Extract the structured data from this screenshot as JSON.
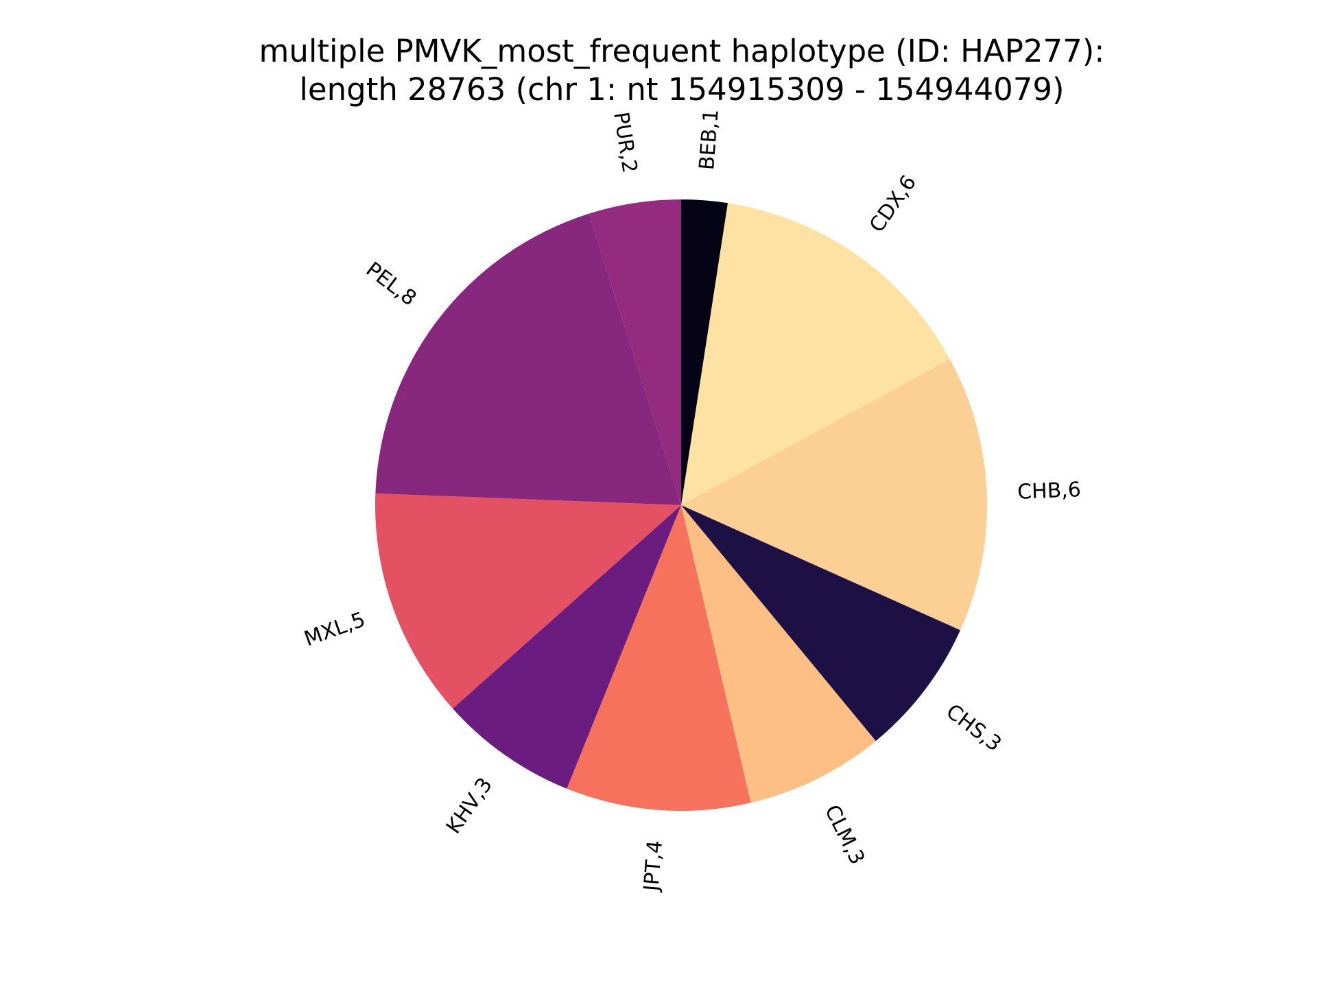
{
  "chart_data": {
    "type": "pie",
    "title": "multiple PMVK_most_frequent haplotype (ID: HAP277):",
    "subtitle": "length 28763 (chr 1: nt 154915309 - 154944079)",
    "start_angle_deg": 90,
    "direction": "clockwise",
    "slices": [
      {
        "label": "BEB,1",
        "value": 1,
        "color": "#050417"
      },
      {
        "label": "CDX,6",
        "value": 6,
        "color": "#fde2a3"
      },
      {
        "label": "CHB,6",
        "value": 6,
        "color": "#fcd094"
      },
      {
        "label": "CHS,3",
        "value": 3,
        "color": "#1c1044"
      },
      {
        "label": "CLM,3",
        "value": 3,
        "color": "#febf84"
      },
      {
        "label": "JPT,4",
        "value": 4,
        "color": "#f6725c"
      },
      {
        "label": "KHV,3",
        "value": 3,
        "color": "#6a1c7f"
      },
      {
        "label": "MXL,5",
        "value": 5,
        "color": "#e35163"
      },
      {
        "label": "PEL,8",
        "value": 8,
        "color": "#87277e"
      },
      {
        "label": "PUR,2",
        "value": 2,
        "color": "#932b7e"
      }
    ]
  }
}
